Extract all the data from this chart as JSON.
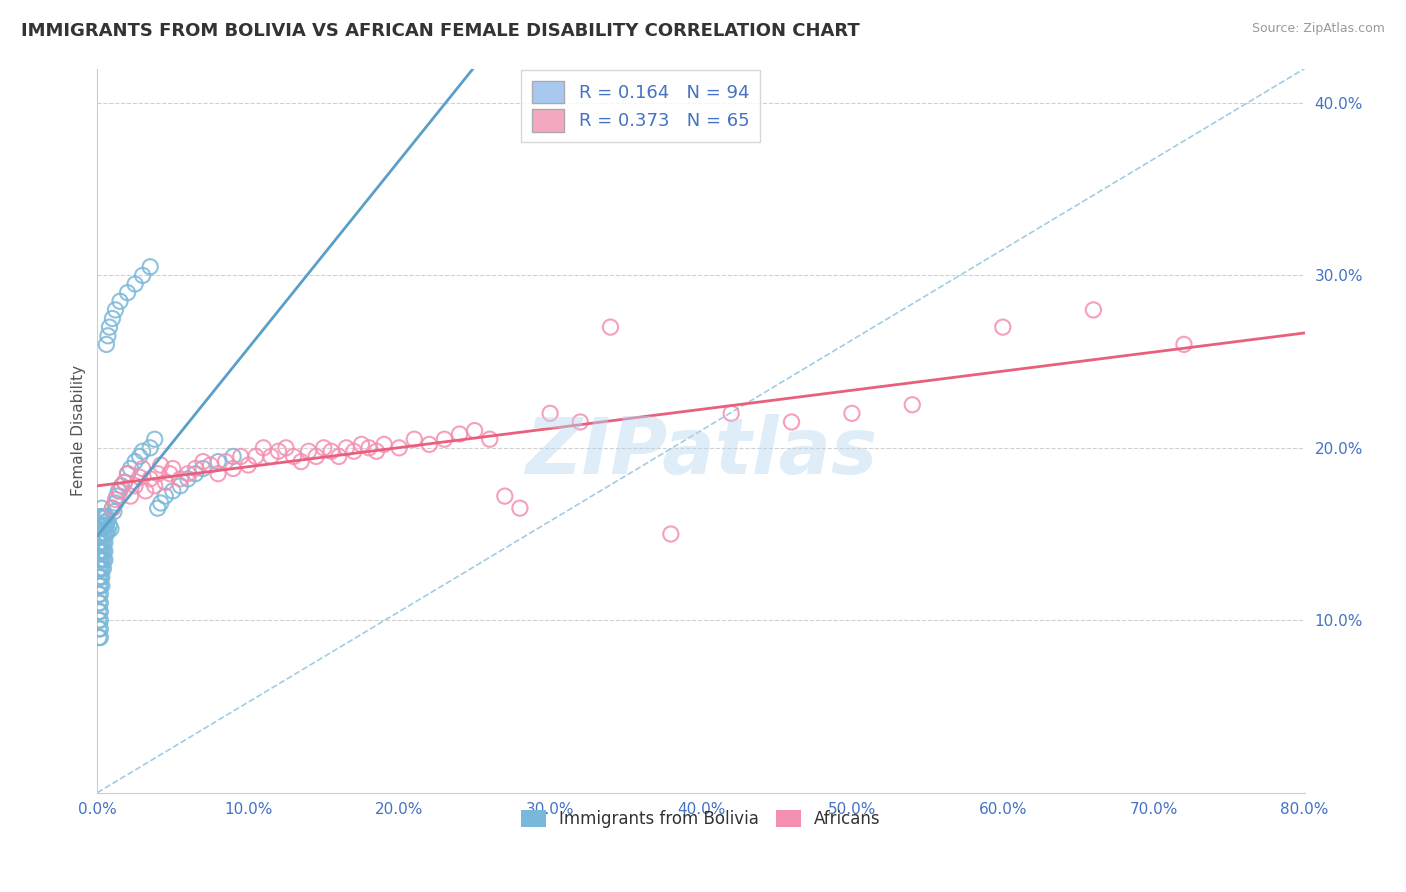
{
  "title": "IMMIGRANTS FROM BOLIVIA VS AFRICAN FEMALE DISABILITY CORRELATION CHART",
  "source": "Source: ZipAtlas.com",
  "ylabel": "Female Disability",
  "watermark": "ZIPatlas",
  "legend_stat_labels": [
    "R = 0.164   N = 94",
    "R = 0.373   N = 65"
  ],
  "legend_stat_colors": [
    "#a8c8f0",
    "#f4a8c0"
  ],
  "legend_labels": [
    "Immigrants from Bolivia",
    "Africans"
  ],
  "xlim": [
    0.0,
    0.8
  ],
  "ylim": [
    0.0,
    0.42
  ],
  "xticks": [
    0.0,
    0.1,
    0.2,
    0.3,
    0.4,
    0.5,
    0.6,
    0.7,
    0.8
  ],
  "yticks": [
    0.1,
    0.2,
    0.3,
    0.4
  ],
  "bolivia_color": "#7ab8d9",
  "africa_color": "#f48fb1",
  "trendline_bolivia_color": "#5b9fc8",
  "trendline_africa_color": "#e8607a",
  "dashed_color": "#7ab8d9",
  "bolivia_x": [
    0.001,
    0.001,
    0.001,
    0.001,
    0.001,
    0.001,
    0.001,
    0.001,
    0.001,
    0.001,
    0.001,
    0.001,
    0.001,
    0.001,
    0.001,
    0.002,
    0.002,
    0.002,
    0.002,
    0.002,
    0.002,
    0.002,
    0.002,
    0.002,
    0.002,
    0.002,
    0.002,
    0.002,
    0.002,
    0.002,
    0.003,
    0.003,
    0.003,
    0.003,
    0.003,
    0.003,
    0.003,
    0.003,
    0.003,
    0.003,
    0.004,
    0.004,
    0.004,
    0.004,
    0.004,
    0.004,
    0.004,
    0.005,
    0.005,
    0.005,
    0.005,
    0.005,
    0.005,
    0.006,
    0.006,
    0.006,
    0.007,
    0.007,
    0.008,
    0.009,
    0.01,
    0.011,
    0.012,
    0.013,
    0.014,
    0.016,
    0.018,
    0.02,
    0.022,
    0.025,
    0.028,
    0.03,
    0.035,
    0.038,
    0.04,
    0.042,
    0.045,
    0.05,
    0.055,
    0.06,
    0.065,
    0.07,
    0.08,
    0.09,
    0.02,
    0.025,
    0.03,
    0.035,
    0.015,
    0.012,
    0.01,
    0.008,
    0.007,
    0.006
  ],
  "bolivia_y": [
    0.16,
    0.155,
    0.15,
    0.145,
    0.14,
    0.135,
    0.13,
    0.125,
    0.12,
    0.115,
    0.11,
    0.105,
    0.1,
    0.095,
    0.09,
    0.16,
    0.155,
    0.15,
    0.145,
    0.14,
    0.135,
    0.13,
    0.125,
    0.12,
    0.115,
    0.11,
    0.105,
    0.1,
    0.095,
    0.09,
    0.165,
    0.16,
    0.155,
    0.15,
    0.145,
    0.14,
    0.135,
    0.13,
    0.125,
    0.12,
    0.16,
    0.155,
    0.15,
    0.145,
    0.14,
    0.135,
    0.13,
    0.16,
    0.155,
    0.15,
    0.145,
    0.14,
    0.135,
    0.16,
    0.155,
    0.15,
    0.158,
    0.152,
    0.155,
    0.153,
    0.165,
    0.163,
    0.168,
    0.172,
    0.175,
    0.178,
    0.18,
    0.185,
    0.188,
    0.192,
    0.195,
    0.198,
    0.2,
    0.205,
    0.165,
    0.168,
    0.172,
    0.175,
    0.178,
    0.182,
    0.185,
    0.188,
    0.192,
    0.195,
    0.29,
    0.295,
    0.3,
    0.305,
    0.285,
    0.28,
    0.275,
    0.27,
    0.265,
    0.26
  ],
  "africa_x": [
    0.01,
    0.012,
    0.015,
    0.018,
    0.02,
    0.022,
    0.025,
    0.028,
    0.03,
    0.032,
    0.035,
    0.038,
    0.04,
    0.042,
    0.045,
    0.048,
    0.05,
    0.055,
    0.06,
    0.065,
    0.07,
    0.075,
    0.08,
    0.085,
    0.09,
    0.095,
    0.1,
    0.105,
    0.11,
    0.115,
    0.12,
    0.125,
    0.13,
    0.135,
    0.14,
    0.145,
    0.15,
    0.155,
    0.16,
    0.165,
    0.17,
    0.175,
    0.18,
    0.185,
    0.19,
    0.2,
    0.21,
    0.22,
    0.23,
    0.24,
    0.25,
    0.26,
    0.27,
    0.28,
    0.3,
    0.32,
    0.34,
    0.38,
    0.42,
    0.46,
    0.5,
    0.54,
    0.6,
    0.66,
    0.72
  ],
  "africa_y": [
    0.165,
    0.17,
    0.175,
    0.18,
    0.185,
    0.172,
    0.178,
    0.183,
    0.188,
    0.175,
    0.182,
    0.178,
    0.185,
    0.19,
    0.18,
    0.185,
    0.188,
    0.182,
    0.185,
    0.188,
    0.192,
    0.19,
    0.185,
    0.192,
    0.188,
    0.195,
    0.19,
    0.195,
    0.2,
    0.195,
    0.198,
    0.2,
    0.195,
    0.192,
    0.198,
    0.195,
    0.2,
    0.198,
    0.195,
    0.2,
    0.198,
    0.202,
    0.2,
    0.198,
    0.202,
    0.2,
    0.205,
    0.202,
    0.205,
    0.208,
    0.21,
    0.205,
    0.172,
    0.165,
    0.22,
    0.215,
    0.27,
    0.15,
    0.22,
    0.215,
    0.22,
    0.225,
    0.27,
    0.28,
    0.26
  ]
}
